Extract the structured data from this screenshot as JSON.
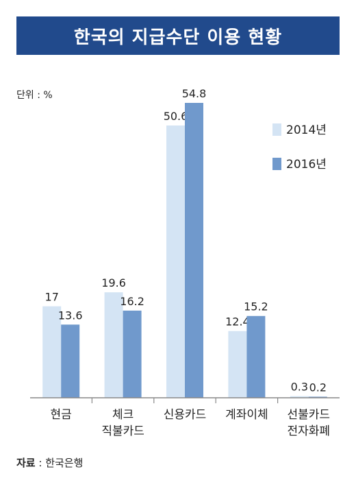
{
  "chart_data": {
    "type": "bar",
    "title": "한국의 지급수단 이용 현황",
    "unit": "단위 : %",
    "categories": [
      "현금",
      "체크\n직불카드",
      "신용카드",
      "계좌이체",
      "선불카드\n전자화폐"
    ],
    "series": [
      {
        "name": "2014년",
        "values": [
          17,
          19.6,
          50.6,
          12.4,
          0.3
        ],
        "color": "#d4e4f4"
      },
      {
        "name": "2016년",
        "values": [
          13.6,
          16.2,
          54.8,
          15.2,
          0.2
        ],
        "color": "#7099cc"
      }
    ],
    "value_labels": [
      [
        "17",
        "19.6",
        "50.6",
        "12.4",
        "0.3"
      ],
      [
        "13.6",
        "16.2",
        "54.8",
        "15.2",
        "0.2"
      ]
    ],
    "ylim": [
      0,
      54.8
    ],
    "grid": false,
    "legend_position": "top-right"
  },
  "source": {
    "label": "자료",
    "separator": " : ",
    "text": "한국은행"
  }
}
